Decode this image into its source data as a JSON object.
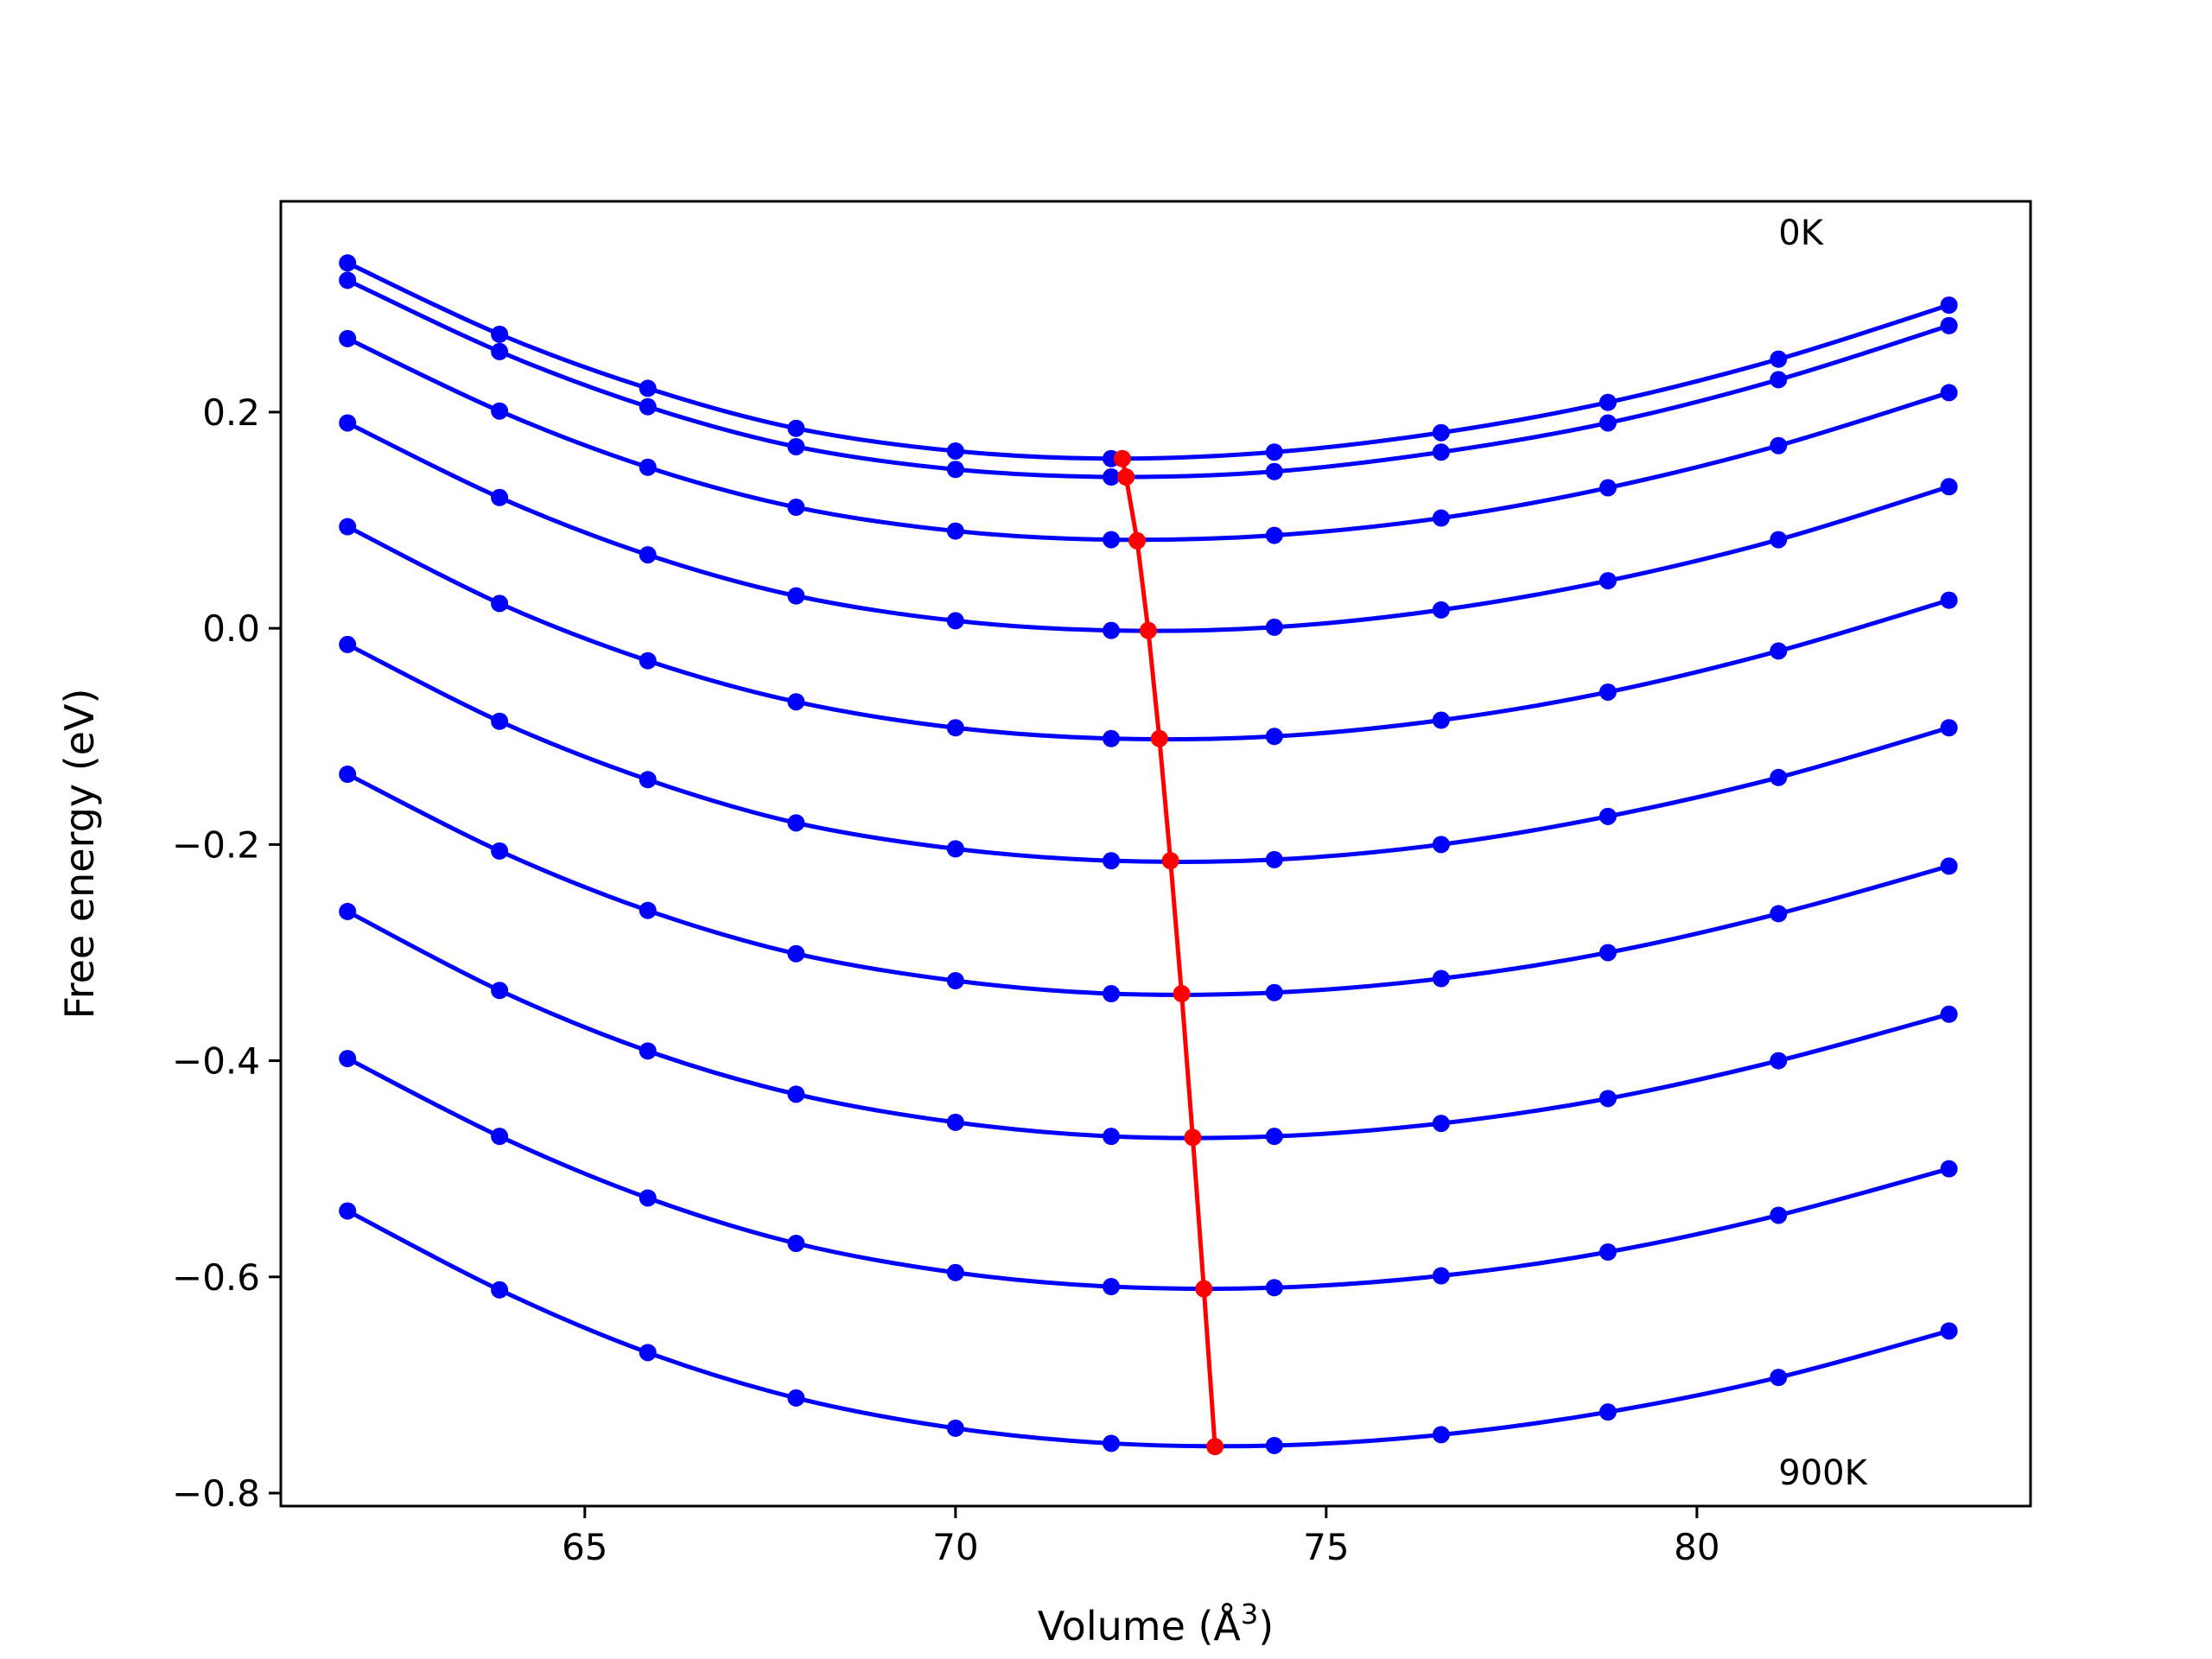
{
  "chart_data": {
    "type": "line",
    "xlabel": "Volume (Å",
    "xlabel_sup": "3",
    "xlabel_end": ")",
    "ylabel": "Free energy (eV)",
    "xlim": [
      60.9,
      84.5
    ],
    "ylim": [
      -0.812,
      0.395
    ],
    "xticks": [
      65,
      70,
      75,
      80
    ],
    "xtick_labels": [
      "65",
      "70",
      "75",
      "80"
    ],
    "yticks": [
      0.2,
      0.0,
      -0.2,
      -0.4,
      -0.6,
      -0.8
    ],
    "ytick_labels": [
      "0.2",
      "0.0",
      "−0.2",
      "−0.4",
      "−0.6",
      "−0.8"
    ],
    "grid": false,
    "annotations": [
      {
        "text": "0K",
        "x": 81.1,
        "y": 0.355
      },
      {
        "text": "900K",
        "x": 81.1,
        "y": -0.792
      }
    ],
    "x": [
      61.8,
      63.85,
      65.85,
      67.85,
      70.0,
      72.1,
      74.3,
      76.55,
      78.8,
      81.1,
      83.4
    ],
    "series": [
      {
        "values": [
          0.338,
          0.272,
          0.222,
          0.185,
          0.164,
          0.157,
          0.163,
          0.181,
          0.209,
          0.249,
          0.299
        ]
      },
      {
        "values": [
          0.322,
          0.256,
          0.205,
          0.168,
          0.147,
          0.14,
          0.145,
          0.163,
          0.19,
          0.23,
          0.28
        ]
      },
      {
        "values": [
          0.268,
          0.201,
          0.149,
          0.112,
          0.09,
          0.082,
          0.086,
          0.102,
          0.13,
          0.169,
          0.218
        ]
      },
      {
        "values": [
          0.19,
          0.121,
          0.068,
          0.03,
          0.007,
          -0.002,
          0.001,
          0.017,
          0.044,
          0.082,
          0.131
        ]
      },
      {
        "values": [
          0.094,
          0.023,
          -0.03,
          -0.068,
          -0.092,
          -0.102,
          -0.1,
          -0.085,
          -0.059,
          -0.021,
          0.026
        ]
      },
      {
        "values": [
          -0.015,
          -0.086,
          -0.14,
          -0.18,
          -0.204,
          -0.215,
          -0.214,
          -0.2,
          -0.174,
          -0.138,
          -0.092
        ]
      },
      {
        "values": [
          -0.135,
          -0.206,
          -0.261,
          -0.301,
          -0.326,
          -0.338,
          -0.337,
          -0.324,
          -0.3,
          -0.264,
          -0.22
        ]
      },
      {
        "values": [
          -0.262,
          -0.335,
          -0.391,
          -0.431,
          -0.457,
          -0.47,
          -0.47,
          -0.458,
          -0.435,
          -0.4,
          -0.357
        ]
      },
      {
        "values": [
          -0.398,
          -0.47,
          -0.527,
          -0.569,
          -0.596,
          -0.609,
          -0.61,
          -0.599,
          -0.577,
          -0.543,
          -0.5
        ]
      },
      {
        "values": [
          -0.539,
          -0.612,
          -0.67,
          -0.712,
          -0.74,
          -0.754,
          -0.756,
          -0.746,
          -0.725,
          -0.693,
          -0.65
        ]
      }
    ],
    "minima": {
      "x": [
        72.25,
        72.3,
        72.45,
        72.6,
        72.75,
        72.9,
        73.05,
        73.2,
        73.35,
        73.5
      ],
      "y": [
        0.157,
        0.14,
        0.081,
        -0.002,
        -0.102,
        -0.215,
        -0.338,
        -0.471,
        -0.611,
        -0.757
      ]
    },
    "colors": {
      "series": "#0000ff",
      "minima": "#ff0000",
      "axes": "#000000"
    }
  }
}
